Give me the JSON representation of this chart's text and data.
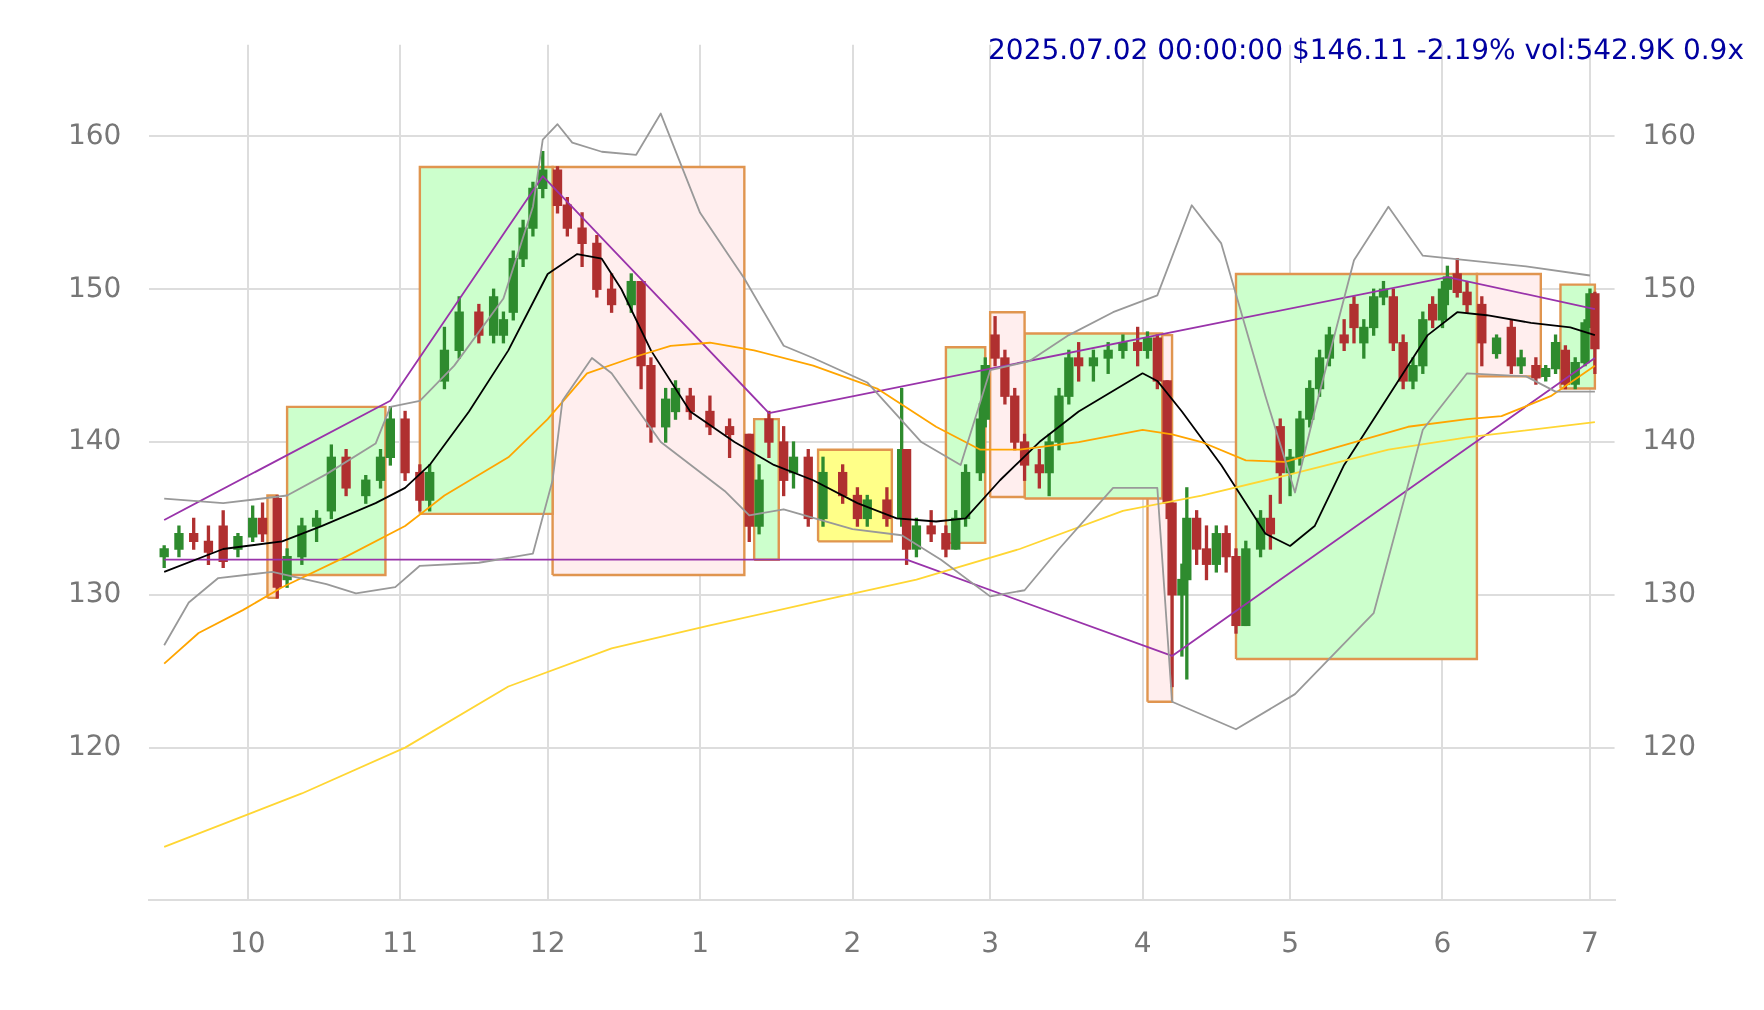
{
  "chart_data": {
    "type": "candlestick",
    "title": "2025.07.02 00:00:00 $146.11 -2.19% vol:542.9K 0.9x",
    "x": [
      "2024-09-14",
      "2024-09-17",
      "2024-09-20",
      "2024-09-23",
      "2024-09-26",
      "2024-09-29",
      "2024-10-02",
      "2024-10-04",
      "2024-10-07",
      "2024-10-09",
      "2024-10-12",
      "2024-10-15",
      "2024-10-18",
      "2024-10-21",
      "2024-10-25",
      "2024-10-28",
      "2024-10-30",
      "2024-11-02",
      "2024-11-05",
      "2024-11-07",
      "2024-11-10",
      "2024-11-13",
      "2024-11-17",
      "2024-11-20",
      "2024-11-22",
      "2024-11-24",
      "2024-11-26",
      "2024-11-28",
      "2024-11-30",
      "2024-12-03",
      "2024-12-05",
      "2024-12-08",
      "2024-12-11",
      "2024-12-14",
      "2024-12-18",
      "2024-12-20",
      "2024-12-22",
      "2024-12-25",
      "2024-12-27",
      "2024-12-30",
      "2025-01-03",
      "2025-01-07",
      "2025-01-11",
      "2025-01-13",
      "2025-01-15",
      "2025-01-18",
      "2025-01-20",
      "2025-01-23",
      "2025-01-26",
      "2025-01-30",
      "2025-02-02",
      "2025-02-04",
      "2025-02-08",
      "2025-02-11",
      "2025-02-12",
      "2025-02-14",
      "2025-02-17",
      "2025-02-20",
      "2025-02-22",
      "2025-02-24",
      "2025-02-27",
      "2025-02-28",
      "2025-03-02",
      "2025-03-04",
      "2025-03-06",
      "2025-03-08",
      "2025-03-11",
      "2025-03-13",
      "2025-03-15",
      "2025-03-17",
      "2025-03-19",
      "2025-03-22",
      "2025-03-25",
      "2025-03-28",
      "2025-03-31",
      "2025-04-02",
      "2025-04-04",
      "2025-04-06",
      "2025-04-07",
      "2025-04-09",
      "2025-04-10",
      "2025-04-12",
      "2025-04-14",
      "2025-04-16",
      "2025-04-18",
      "2025-04-20",
      "2025-04-22",
      "2025-04-25",
      "2025-04-27",
      "2025-04-29",
      "2025-05-01",
      "2025-05-03",
      "2025-05-05",
      "2025-05-07",
      "2025-05-09",
      "2025-05-12",
      "2025-05-14",
      "2025-05-16",
      "2025-05-18",
      "2025-05-20",
      "2025-05-22",
      "2025-05-24",
      "2025-05-26",
      "2025-05-28",
      "2025-05-30",
      "2025-06-01",
      "2025-06-02",
      "2025-06-04",
      "2025-06-06",
      "2025-06-09",
      "2025-06-12",
      "2025-06-15",
      "2025-06-17",
      "2025-06-20",
      "2025-06-22",
      "2025-06-24",
      "2025-06-26",
      "2025-06-28",
      "2025-06-30",
      "2025-07-01",
      "2025-07-02"
    ],
    "ohlc": [
      [
        132.5,
        133.2,
        131.8,
        133
      ],
      [
        133,
        134.5,
        132.5,
        134
      ],
      [
        134,
        135,
        133,
        133.5
      ],
      [
        133.5,
        134.5,
        132,
        132.8
      ],
      [
        134.5,
        135.5,
        131.8,
        132.2
      ],
      [
        133,
        134,
        132.5,
        133.8
      ],
      [
        133.8,
        135.8,
        133.5,
        135
      ],
      [
        135,
        136,
        133.5,
        134
      ],
      [
        136.3,
        136.5,
        129.8,
        130.5
      ],
      [
        131,
        133,
        130.5,
        132.5
      ],
      [
        132.5,
        135,
        132,
        134.5
      ],
      [
        134.5,
        135.5,
        133.5,
        135
      ],
      [
        135.5,
        139.8,
        135,
        139
      ],
      [
        139,
        139.5,
        136.5,
        137
      ],
      [
        136.5,
        137.8,
        136,
        137.5
      ],
      [
        137.5,
        139.5,
        137,
        139
      ],
      [
        139,
        142.3,
        138.5,
        141.5
      ],
      [
        141.5,
        142,
        137.5,
        138
      ],
      [
        138,
        138.5,
        135.5,
        136.2
      ],
      [
        136.2,
        138.5,
        135.5,
        138
      ],
      [
        144,
        147.5,
        143.5,
        146
      ],
      [
        146,
        149.5,
        145.5,
        148.5
      ],
      [
        148.5,
        149,
        146.5,
        147
      ],
      [
        147,
        150,
        146.5,
        149.5
      ],
      [
        147,
        148.5,
        146.5,
        148
      ],
      [
        148.5,
        152.5,
        148,
        152
      ],
      [
        152,
        154.5,
        151.5,
        154
      ],
      [
        154,
        157,
        153.5,
        156.6
      ],
      [
        156.6,
        159,
        156,
        157.8
      ],
      [
        157.8,
        158,
        155,
        155.5
      ],
      [
        155.5,
        156,
        153.5,
        154
      ],
      [
        154,
        155,
        151.5,
        153
      ],
      [
        153,
        153.5,
        149.5,
        150
      ],
      [
        150,
        151,
        148.5,
        149
      ],
      [
        149,
        151,
        148.5,
        150.5
      ],
      [
        150.5,
        150.5,
        143.5,
        145
      ],
      [
        145,
        145.5,
        140,
        141
      ],
      [
        141,
        143.5,
        140,
        142.8
      ],
      [
        142,
        144,
        141.5,
        143.5
      ],
      [
        143,
        143.5,
        141.5,
        142
      ],
      [
        142,
        143,
        140.5,
        141
      ],
      [
        141,
        141.5,
        139,
        140.5
      ],
      [
        140.5,
        140.5,
        133.5,
        134.5
      ],
      [
        134.5,
        138.5,
        134,
        137.5
      ],
      [
        141.5,
        142,
        139,
        140
      ],
      [
        140,
        141,
        136.5,
        137.5
      ],
      [
        138,
        140,
        137,
        139
      ],
      [
        139,
        139.5,
        134.5,
        135
      ],
      [
        135,
        139,
        134.5,
        138
      ],
      [
        138,
        138.5,
        136,
        136.5
      ],
      [
        136.5,
        137,
        134.5,
        135
      ],
      [
        135,
        136.5,
        134.5,
        136.2
      ],
      [
        136.2,
        137,
        134.5,
        135
      ],
      [
        135,
        143.5,
        134.5,
        139.5
      ],
      [
        139.5,
        139.5,
        132,
        133
      ],
      [
        133,
        135,
        132.5,
        134.5
      ],
      [
        134.5,
        135.5,
        133.5,
        134
      ],
      [
        134,
        134.5,
        132.5,
        133
      ],
      [
        133,
        135.5,
        133,
        135
      ],
      [
        135,
        138.5,
        134.5,
        138
      ],
      [
        138,
        142.5,
        137.5,
        141.5
      ],
      [
        141.5,
        145.5,
        141,
        145
      ],
      [
        147,
        148.2,
        145,
        145.5
      ],
      [
        145.5,
        146,
        142.5,
        143
      ],
      [
        143,
        143.5,
        139.5,
        140
      ],
      [
        140,
        140.5,
        137.5,
        138.5
      ],
      [
        138.5,
        139.5,
        137,
        138
      ],
      [
        138,
        140.5,
        136.5,
        140
      ],
      [
        140,
        143.5,
        139.5,
        143
      ],
      [
        143,
        146,
        142.5,
        145.5
      ],
      [
        145.5,
        146.5,
        144,
        145
      ],
      [
        145,
        146,
        144,
        145.5
      ],
      [
        145.5,
        146.5,
        144.5,
        146
      ],
      [
        146,
        147,
        145.5,
        146.5
      ],
      [
        146.5,
        147.5,
        145,
        146
      ],
      [
        146,
        147.2,
        145.5,
        146.8
      ],
      [
        146.8,
        147,
        143.5,
        144
      ],
      [
        144,
        144,
        135,
        136
      ],
      [
        136,
        136,
        124,
        130
      ],
      [
        130,
        132,
        126,
        131
      ],
      [
        131,
        137,
        124.5,
        135
      ],
      [
        135,
        135.5,
        132,
        133
      ],
      [
        133,
        134.5,
        131,
        132
      ],
      [
        132,
        134.5,
        131.5,
        134
      ],
      [
        134,
        134.5,
        131.5,
        132.5
      ],
      [
        132.5,
        133,
        127.5,
        128
      ],
      [
        128,
        133.5,
        128,
        133
      ],
      [
        133,
        135.5,
        132.5,
        135
      ],
      [
        135,
        136.5,
        133,
        134
      ],
      [
        141,
        141.5,
        136,
        138
      ],
      [
        138,
        139.5,
        136.5,
        139
      ],
      [
        139,
        142,
        138.5,
        141.5
      ],
      [
        141.5,
        144,
        141,
        143.5
      ],
      [
        143.5,
        146,
        143,
        145.5
      ],
      [
        145.5,
        147.5,
        145,
        147
      ],
      [
        147,
        148,
        146,
        146.5
      ],
      [
        149,
        149.5,
        146.5,
        147.5
      ],
      [
        146.5,
        148,
        145.5,
        147.5
      ],
      [
        147.5,
        150,
        147,
        149.5
      ],
      [
        149.5,
        150.5,
        149,
        150
      ],
      [
        149.5,
        150,
        146,
        146.5
      ],
      [
        146.5,
        147,
        143.5,
        144
      ],
      [
        144,
        145.5,
        143.5,
        145
      ],
      [
        145,
        148.5,
        144.5,
        148
      ],
      [
        149,
        149.5,
        147.5,
        148
      ],
      [
        148,
        150.5,
        147.5,
        150
      ],
      [
        150,
        151.5,
        149,
        150.8
      ],
      [
        151,
        152,
        149.5,
        149.8
      ],
      [
        149.8,
        150.5,
        148.5,
        149
      ],
      [
        149,
        149.5,
        145,
        146.5
      ],
      [
        145.8,
        147,
        145.5,
        146.8
      ],
      [
        147.5,
        148,
        144.5,
        145
      ],
      [
        145,
        146,
        144.5,
        145.5
      ],
      [
        145,
        145.5,
        143.8,
        144.2
      ],
      [
        144.3,
        145,
        144,
        144.8
      ],
      [
        144.8,
        147,
        144.5,
        146.5
      ],
      [
        146,
        146.3,
        143.5,
        143.8
      ],
      [
        143.8,
        145.5,
        143.5,
        145.2
      ],
      [
        145.2,
        148,
        145,
        147.8
      ],
      [
        147.8,
        150,
        147.5,
        149.7
      ],
      [
        149.7,
        149.8,
        144.5,
        146.11
      ]
    ],
    "colors": [
      "#2e8b2e",
      "#2e8b2e",
      "#b03030",
      "#b03030",
      "#b03030",
      "#2e8b2e",
      "#2e8b2e",
      "#b03030",
      "#b03030",
      "#2e8b2e",
      "#2e8b2e",
      "#2e8b2e",
      "#2e8b2e",
      "#b03030",
      "#2e8b2e",
      "#2e8b2e",
      "#2e8b2e",
      "#b03030",
      "#b03030",
      "#2e8b2e",
      "#2e8b2e",
      "#2e8b2e",
      "#b03030",
      "#2e8b2e",
      "#2e8b2e",
      "#2e8b2e",
      "#2e8b2e",
      "#2e8b2e",
      "#2e8b2e",
      "#b03030",
      "#b03030",
      "#b03030",
      "#b03030",
      "#b03030",
      "#2e8b2e",
      "#b03030",
      "#b03030",
      "#2e8b2e",
      "#2e8b2e",
      "#b03030",
      "#b03030",
      "#b03030",
      "#b03030",
      "#2e8b2e",
      "#b03030",
      "#b03030",
      "#2e8b2e",
      "#b03030",
      "#2e8b2e",
      "#b03030",
      "#b03030",
      "#2e8b2e",
      "#b03030",
      "#2e8b2e",
      "#b03030",
      "#2e8b2e",
      "#b03030",
      "#b03030",
      "#2e8b2e",
      "#2e8b2e",
      "#2e8b2e",
      "#2e8b2e",
      "#b03030",
      "#b03030",
      "#b03030",
      "#b03030",
      "#b03030",
      "#2e8b2e",
      "#2e8b2e",
      "#2e8b2e",
      "#b03030",
      "#2e8b2e",
      "#2e8b2e",
      "#2e8b2e",
      "#b03030",
      "#2e8b2e",
      "#b03030",
      "#b03030",
      "#b03030",
      "#2e8b2e",
      "#2e8b2e",
      "#b03030",
      "#b03030",
      "#2e8b2e",
      "#b03030",
      "#b03030",
      "#2e8b2e",
      "#2e8b2e",
      "#b03030",
      "#b03030",
      "#2e8b2e",
      "#2e8b2e",
      "#2e8b2e",
      "#2e8b2e",
      "#2e8b2e",
      "#b03030",
      "#b03030",
      "#2e8b2e",
      "#2e8b2e",
      "#2e8b2e",
      "#b03030",
      "#b03030",
      "#2e8b2e",
      "#2e8b2e",
      "#b03030",
      "#2e8b2e",
      "#2e8b2e",
      "#b03030",
      "#b03030",
      "#b03030",
      "#2e8b2e",
      "#b03030",
      "#2e8b2e",
      "#b03030",
      "#2e8b2e",
      "#2e8b2e",
      "#b03030",
      "#2e8b2e",
      "#2e8b2e",
      "#2e8b2e",
      "#b03030"
    ],
    "series": [
      {
        "type": "area",
        "color": "#ccffcc",
        "x": [
          "2024-10-09",
          "2024-10-09",
          "2024-10-29",
          "2024-10-29",
          "2024-10-09"
        ],
        "values": [
          131.3,
          142.3,
          142.3,
          131.3,
          131.3
        ]
      },
      {
        "type": "area",
        "color": "#ffe0c0",
        "x": [
          "2024-10-05",
          "2024-10-05",
          "2024-10-07",
          "2024-10-07",
          "2024-10-05"
        ],
        "values": [
          129.8,
          136.5,
          136.5,
          129.8,
          129.8
        ]
      },
      {
        "type": "area",
        "color": "#ccffcc",
        "x": [
          "2024-11-05",
          "2024-11-05",
          "2024-12-02",
          "2024-12-02",
          "2024-11-05"
        ],
        "values": [
          135.3,
          158,
          158,
          135.3,
          135.3
        ]
      },
      {
        "type": "area",
        "color": "#ffeeee",
        "x": [
          "2024-12-02",
          "2024-12-02",
          "2025-01-10",
          "2025-01-10",
          "2024-12-02"
        ],
        "values": [
          131.3,
          158,
          158,
          131.3,
          131.3
        ]
      },
      {
        "type": "area",
        "color": "#ccffcc",
        "x": [
          "2025-01-12",
          "2025-01-12",
          "2025-01-17",
          "2025-01-17",
          "2025-01-12"
        ],
        "values": [
          132.3,
          141.5,
          141.5,
          132.3,
          132.3
        ]
      },
      {
        "type": "area",
        "color": "#ffff88",
        "x": [
          "2025-01-25",
          "2025-01-25",
          "2025-02-09",
          "2025-02-09",
          "2025-01-25"
        ],
        "values": [
          133.5,
          139.5,
          139.5,
          133.5,
          133.5
        ]
      },
      {
        "type": "area",
        "color": "#ccffcc",
        "x": [
          "2025-02-20",
          "2025-02-20",
          "2025-02-28",
          "2025-02-28",
          "2025-02-20"
        ],
        "values": [
          133.4,
          146.2,
          146.2,
          133.4,
          133.4
        ]
      },
      {
        "type": "area",
        "color": "#ffeeee",
        "x": [
          "2025-03-01",
          "2025-03-01",
          "2025-03-08",
          "2025-03-08",
          "2025-03-01"
        ],
        "values": [
          136.4,
          148.5,
          148.5,
          136.4,
          136.4
        ]
      },
      {
        "type": "area",
        "color": "#ccffcc",
        "x": [
          "2025-03-08",
          "2025-03-08",
          "2025-04-05",
          "2025-04-05",
          "2025-03-08"
        ],
        "values": [
          136.3,
          147.1,
          147.1,
          136.3,
          136.3
        ]
      },
      {
        "type": "area",
        "color": "#ffeeee",
        "x": [
          "2025-04-02",
          "2025-04-02",
          "2025-04-07",
          "2025-04-07",
          "2025-04-02"
        ],
        "values": [
          123,
          147,
          147,
          123,
          123
        ]
      },
      {
        "type": "area",
        "color": "#ccffcc",
        "x": [
          "2025-04-20",
          "2025-04-20",
          "2025-06-08",
          "2025-06-08",
          "2025-04-20"
        ],
        "values": [
          125.8,
          151,
          151,
          125.8,
          125.8
        ]
      },
      {
        "type": "area",
        "color": "#ffeeee",
        "x": [
          "2025-06-08",
          "2025-06-08",
          "2025-06-21",
          "2025-06-21",
          "2025-06-08"
        ],
        "values": [
          144.3,
          151,
          151,
          144.3,
          144.3
        ]
      },
      {
        "type": "area",
        "color": "#ccffcc",
        "x": [
          "2025-06-25",
          "2025-06-25",
          "2025-07-02",
          "2025-07-02",
          "2025-06-25"
        ],
        "values": [
          143.5,
          150.3,
          150.3,
          143.5,
          143.5
        ]
      },
      {
        "type": "line",
        "color": "#999999",
        "x": [
          "2024-09-14",
          "2024-09-26",
          "2024-10-09",
          "2024-10-17",
          "2024-10-27",
          "2024-10-30",
          "2024-11-05",
          "2024-11-12",
          "2024-11-22",
          "2024-11-28",
          "2024-11-30",
          "2024-12-03",
          "2024-12-06",
          "2024-12-12",
          "2024-12-19",
          "2024-12-24",
          "2025-01-01",
          "2025-01-10",
          "2025-01-18",
          "2025-01-24",
          "2025-02-04",
          "2025-02-15",
          "2025-02-23",
          "2025-03-01",
          "2025-03-09",
          "2025-03-17",
          "2025-03-26",
          "2025-04-04",
          "2025-04-11",
          "2025-04-17",
          "2025-04-26",
          "2025-05-02",
          "2025-05-06",
          "2025-05-14",
          "2025-05-21",
          "2025-05-28",
          "2025-06-18",
          "2025-07-01"
        ],
        "values": [
          136.3,
          136,
          136.5,
          137.9,
          139.9,
          142.3,
          142.7,
          145,
          149.4,
          155.4,
          159.8,
          160.8,
          159.6,
          159,
          158.8,
          161.5,
          155,
          150.7,
          146.3,
          145.5,
          143.9,
          140,
          138.5,
          144.7,
          145.3,
          147,
          148.5,
          149.6,
          155.5,
          153,
          143,
          136.7,
          142,
          151.9,
          155.4,
          152.2,
          151.5,
          150.9
        ]
      },
      {
        "type": "line",
        "color": "#999999",
        "x": [
          "2024-09-14",
          "2024-09-19",
          "2024-09-25",
          "2024-10-06",
          "2024-10-17",
          "2024-10-23",
          "2024-10-31",
          "2024-11-05",
          "2024-11-17",
          "2024-11-28",
          "2024-12-02",
          "2024-12-04",
          "2024-12-10",
          "2024-12-14",
          "2024-12-24",
          "2025-01-06",
          "2025-01-11",
          "2025-01-18",
          "2025-02-01",
          "2025-02-11",
          "2025-02-19",
          "2025-03-01",
          "2025-03-08",
          "2025-03-15",
          "2025-03-26",
          "2025-04-04",
          "2025-04-07",
          "2025-04-20",
          "2025-05-02",
          "2025-05-18",
          "2025-05-28",
          "2025-06-06",
          "2025-06-18",
          "2025-06-24",
          "2025-07-02"
        ],
        "values": [
          126.7,
          129.5,
          131.1,
          131.5,
          130.7,
          130.1,
          130.5,
          131.9,
          132.1,
          132.7,
          137.5,
          142.7,
          145.5,
          144.5,
          140,
          136.8,
          135.2,
          135.6,
          134.3,
          133.9,
          132.3,
          129.9,
          130.3,
          133,
          137,
          137,
          123,
          121.2,
          123.5,
          128.8,
          140.8,
          144.5,
          144.3,
          143.3,
          143.3
        ]
      },
      {
        "type": "line",
        "color": "#ffd633",
        "x": [
          "2024-09-14",
          "2024-10-12",
          "2024-11-02",
          "2024-11-23",
          "2024-12-14",
          "2025-01-03",
          "2025-01-24",
          "2025-02-14",
          "2025-03-07",
          "2025-03-28",
          "2025-04-13",
          "2025-04-30",
          "2025-05-21",
          "2025-06-06",
          "2025-07-02"
        ],
        "values": [
          113.5,
          117,
          120,
          124,
          126.5,
          128,
          129.5,
          131,
          133,
          135.5,
          136.5,
          137.8,
          139.5,
          140.3,
          141.3
        ]
      },
      {
        "type": "line",
        "color": "#ffa500",
        "x": [
          "2024-09-14",
          "2024-09-21",
          "2024-09-30",
          "2024-10-08",
          "2024-10-21",
          "2024-11-02",
          "2024-11-10",
          "2024-11-23",
          "2024-12-01",
          "2024-12-09",
          "2024-12-18",
          "2024-12-26",
          "2025-01-03",
          "2025-01-12",
          "2025-01-24",
          "2025-02-06",
          "2025-02-18",
          "2025-02-27",
          "2025-03-07",
          "2025-03-19",
          "2025-04-01",
          "2025-04-07",
          "2025-04-13",
          "2025-04-22",
          "2025-04-30",
          "2025-05-12",
          "2025-05-25",
          "2025-06-06",
          "2025-06-13",
          "2025-06-23",
          "2025-07-02"
        ],
        "values": [
          125.5,
          127.5,
          129,
          130.5,
          132.5,
          134.5,
          136.5,
          139,
          141.5,
          144.5,
          145.5,
          146.3,
          146.5,
          146,
          145,
          143.5,
          141,
          139.5,
          139.5,
          140,
          140.8,
          140.5,
          140,
          138.8,
          138.7,
          139.8,
          141,
          141.5,
          141.7,
          143,
          145
        ]
      },
      {
        "type": "line",
        "color": "#000000",
        "x": [
          "2024-09-14",
          "2024-09-26",
          "2024-10-08",
          "2024-10-16",
          "2024-10-27",
          "2024-11-02",
          "2024-11-07",
          "2024-11-15",
          "2024-11-23",
          "2024-12-01",
          "2024-12-07",
          "2024-12-12",
          "2024-12-16",
          "2024-12-22",
          "2024-12-30",
          "2025-01-08",
          "2025-01-16",
          "2025-01-24",
          "2025-02-02",
          "2025-02-10",
          "2025-02-18",
          "2025-02-24",
          "2025-03-03",
          "2025-03-11",
          "2025-03-19",
          "2025-04-01",
          "2025-04-04",
          "2025-04-09",
          "2025-04-17",
          "2025-04-26",
          "2025-05-01",
          "2025-05-06",
          "2025-05-12",
          "2025-05-21",
          "2025-05-29",
          "2025-06-04",
          "2025-06-10",
          "2025-06-19",
          "2025-06-27",
          "2025-07-02"
        ],
        "values": [
          131.5,
          133,
          133.5,
          134.5,
          136,
          137,
          138.5,
          142,
          146,
          151,
          152.3,
          152,
          150,
          146,
          142,
          140,
          138.5,
          137.5,
          136,
          135,
          134.8,
          135,
          137.5,
          140,
          142,
          144.5,
          144,
          142,
          138.5,
          134,
          133.2,
          134.5,
          138.5,
          143,
          147,
          148.5,
          148.3,
          147.8,
          147.5,
          147
        ]
      },
      {
        "type": "line",
        "color": "#9933aa",
        "x": [
          "2024-09-14",
          "2024-10-30",
          "2024-11-30",
          "2025-01-15",
          "2025-06-02",
          "2025-07-02"
        ],
        "values": [
          134.9,
          142.7,
          157.4,
          141.9,
          150.8,
          148.7
        ]
      },
      {
        "type": "line",
        "color": "#9933aa",
        "x": [
          "2024-09-14",
          "2025-02-12",
          "2025-04-07",
          "2025-07-02"
        ],
        "values": [
          132.3,
          132.3,
          126,
          145.5
        ]
      }
    ],
    "xlim": [
      "2024-09-11",
      "2025-07-06"
    ],
    "xticks": [
      {
        "value": "2024-10",
        "label": "10"
      },
      {
        "value": "2024-11",
        "label": "11"
      },
      {
        "value": "2024-12",
        "label": "12"
      },
      {
        "value": "2025-01",
        "label": "1"
      },
      {
        "value": "2025-02",
        "label": "2"
      },
      {
        "value": "2025-03",
        "label": "3"
      },
      {
        "value": "2025-04",
        "label": "4"
      },
      {
        "value": "2025-05",
        "label": "5"
      },
      {
        "value": "2025-06",
        "label": "6"
      },
      {
        "value": "2025-07",
        "label": "7"
      }
    ],
    "ylim": [
      110,
      166
    ],
    "yticks": [
      120,
      130,
      140,
      150,
      160
    ],
    "y2lim": [
      110,
      166
    ],
    "y2ticks": [
      120,
      130,
      140,
      150,
      160
    ],
    "grid": true,
    "legend": false,
    "marker": "none"
  }
}
